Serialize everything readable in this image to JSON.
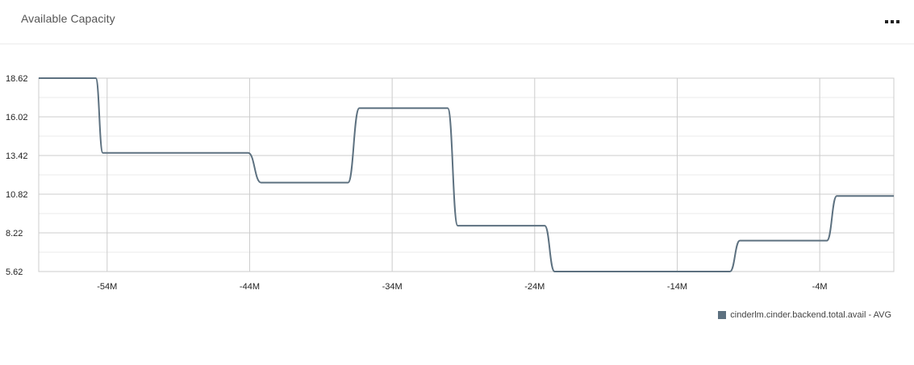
{
  "header": {
    "title": "Available Capacity",
    "menu_icon": "more-horizontal-icon"
  },
  "colors": {
    "series": "#5d7180",
    "grid_major": "#cccccc",
    "grid_minor": "#ebebeb"
  },
  "chart_data": {
    "type": "line",
    "title": "",
    "xlabel": "",
    "ylabel": "",
    "xlim": [
      -58.8,
      1.2
    ],
    "ylim": [
      5.62,
      18.62
    ],
    "x_unit": "M",
    "x_ticks": [
      {
        "value": -54,
        "label": "-54M"
      },
      {
        "value": -44,
        "label": "-44M"
      },
      {
        "value": -34,
        "label": "-34M"
      },
      {
        "value": -24,
        "label": "-24M"
      },
      {
        "value": -14,
        "label": "-14M"
      },
      {
        "value": -4,
        "label": "-4M"
      }
    ],
    "y_ticks": [
      {
        "value": 18.62,
        "label": "18.62"
      },
      {
        "value": 16.02,
        "label": "16.02"
      },
      {
        "value": 13.42,
        "label": "13.42"
      },
      {
        "value": 10.82,
        "label": "10.82"
      },
      {
        "value": 8.22,
        "label": "8.22"
      },
      {
        "value": 5.62,
        "label": "5.62"
      }
    ],
    "grid": true,
    "legend_position": "bottom-right",
    "series": [
      {
        "name": "cinderlm.cinder.backend.total.avail - AVG",
        "x": [
          -58.8,
          -54.8,
          -54.3,
          -44.1,
          -43.2,
          -37.1,
          -36.3,
          -30.1,
          -29.4,
          -23.3,
          -22.6,
          -16.8,
          -12.1,
          -10.3,
          -9.6,
          -3.5,
          -2.8,
          1.2
        ],
        "y": [
          18.62,
          18.62,
          13.6,
          13.6,
          11.6,
          11.6,
          16.6,
          16.6,
          8.7,
          8.7,
          5.62,
          5.62,
          5.62,
          5.62,
          7.7,
          7.7,
          10.7,
          10.7
        ]
      }
    ]
  }
}
